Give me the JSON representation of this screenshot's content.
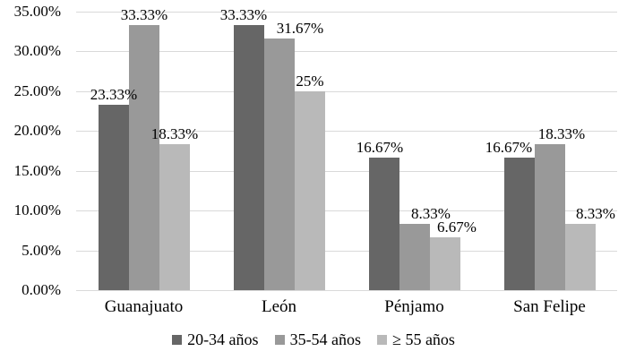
{
  "chart_data": {
    "type": "bar",
    "title": "",
    "xlabel": "",
    "ylabel": "",
    "categories": [
      "Guanajuato",
      "León",
      "Pénjamo",
      "San Felipe"
    ],
    "series": [
      {
        "name": "20-34 años",
        "color": "#666666",
        "values": [
          23.33,
          33.33,
          16.67,
          16.67
        ],
        "labels": [
          "23.33%",
          "33.33%",
          "16.67%",
          "16.67%"
        ]
      },
      {
        "name": "35-54 años",
        "color": "#999999",
        "values": [
          33.33,
          31.67,
          8.33,
          18.33
        ],
        "labels": [
          "33.33%",
          "31.67%",
          "8.33%",
          "18.33%"
        ]
      },
      {
        "name": "≥ 55 años",
        "color": "#b9b9b9",
        "values": [
          18.33,
          25,
          6.67,
          8.33
        ],
        "labels": [
          "18.33%",
          "25%",
          "6.67%",
          "8.33%"
        ]
      }
    ],
    "y_axis": {
      "min": 0,
      "max": 35,
      "step": 5,
      "tick_labels": [
        "0.00%",
        "5.00%",
        "10.00%",
        "15.00%",
        "20.00%",
        "25.00%",
        "30.00%",
        "35.00%"
      ]
    },
    "ylim": [
      0,
      35
    ],
    "grid": true,
    "gridline_color": "#d9d9d9",
    "legend_position": "bottom",
    "label_dx": [
      [
        0,
        -6,
        -5,
        -12
      ],
      [
        0,
        23,
        18,
        13
      ],
      [
        0,
        0,
        13,
        17
      ]
    ]
  }
}
